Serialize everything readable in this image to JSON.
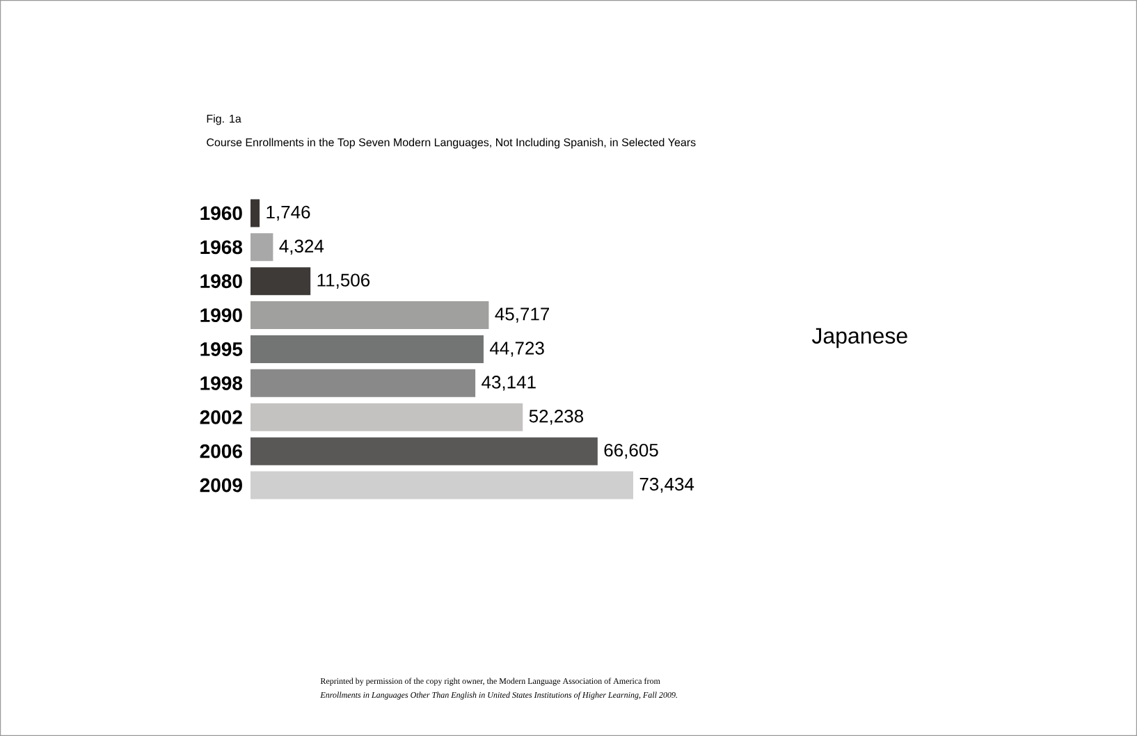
{
  "chart_data": {
    "type": "bar",
    "orientation": "horizontal",
    "title": "Fig. 1a",
    "subtitle": "Course Enrollments in the Top Seven Modern Languages, Not Including Spanish, in Selected Years",
    "categories": [
      "1960",
      "1968",
      "1980",
      "1990",
      "1995",
      "1998",
      "2002",
      "2006",
      "2009"
    ],
    "values": [
      1746,
      4324,
      11506,
      45717,
      44723,
      43141,
      52238,
      66605,
      73434
    ],
    "value_labels": [
      "1,746",
      "4,324",
      "11,506",
      "45,717",
      "44,723",
      "43,141",
      "52,238",
      "66,605",
      "73,434"
    ],
    "colors": [
      "#3a3533",
      "#a8a8a8",
      "#3d3a38",
      "#a0a09f",
      "#737474",
      "#8a8989",
      "#c4c2c0",
      "#5a5857",
      "#cfcfcf"
    ],
    "data_labels": true,
    "tick_labels": "y",
    "annotations": [
      "Japanese",
      "Reprinted by permission of the copy right owner, the Modern Language Association of America from",
      "Enrollments in Languages Other Than English in United States Institutions of Higher Learning, Fall 2009."
    ]
  }
}
